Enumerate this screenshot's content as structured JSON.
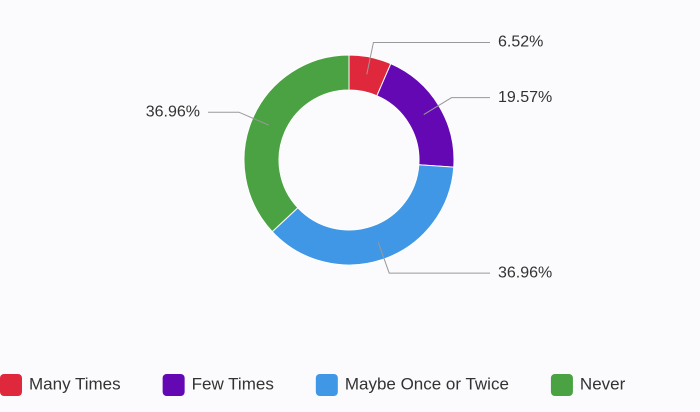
{
  "chart_data": {
    "type": "pie",
    "donut": true,
    "categories": [
      "Many Times",
      "Few Times",
      "Maybe Once or Twice",
      "Never"
    ],
    "values": [
      6.52,
      19.57,
      36.96,
      36.96
    ],
    "value_labels": [
      "6.52%",
      "19.57%",
      "36.96%",
      "36.96%"
    ],
    "colors": [
      "#e0283c",
      "#6408b4",
      "#3f97e6",
      "#4aa243"
    ],
    "legend": "bottom"
  }
}
